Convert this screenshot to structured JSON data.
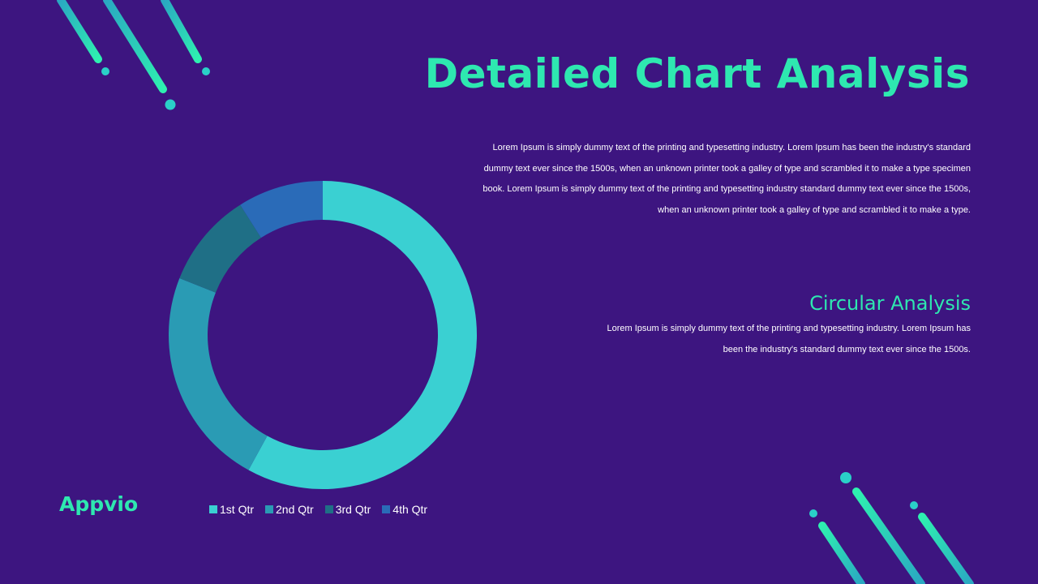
{
  "slide": {
    "title": "Detailed Chart Analysis",
    "intro_text": "Lorem Ipsum is simply dummy text of the printing and typesetting industry. Lorem Ipsum has been the industry's standard dummy text ever since the 1500s, when an unknown printer took a galley of type and scrambled it to make a type specimen book. Lorem Ipsum is simply dummy text of the printing and typesetting industry standard dummy text ever since the 1500s, when an unknown printer took a galley of type and scrambled it to make a type.",
    "subtitle": "Circular Analysis",
    "subtitle_text": "Lorem Ipsum is simply dummy text of the printing and typesetting industry. Lorem Ipsum has been the industry's standard dummy text ever since the 1500s.",
    "logo": "Appvio"
  },
  "colors": {
    "background": "#3d1580",
    "accent": "#2ee8b0",
    "text": "#ffffff"
  },
  "chart_data": {
    "type": "pie",
    "subtype": "doughnut",
    "categories": [
      "1st Qtr",
      "2nd Qtr",
      "3rd Qtr",
      "4th Qtr"
    ],
    "values": [
      58,
      23,
      10,
      9
    ],
    "colors": [
      "#3ad0d2",
      "#2a9bb4",
      "#1f6f86",
      "#2a6bb8"
    ],
    "legend_position": "bottom"
  }
}
